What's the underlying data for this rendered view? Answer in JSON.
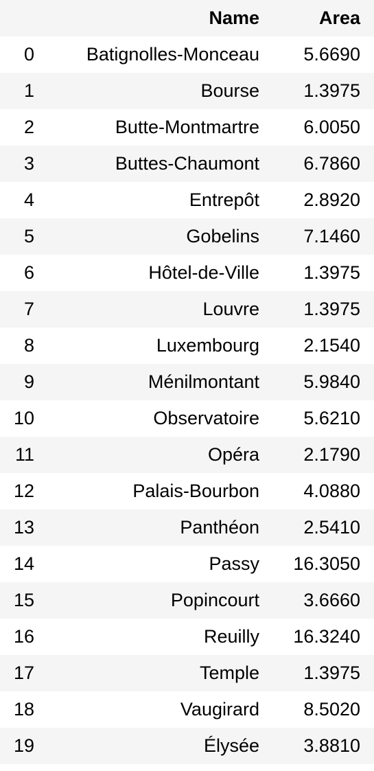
{
  "table": {
    "columns": {
      "index": "",
      "name": "Name",
      "area": "Area"
    },
    "rows": [
      {
        "index": "0",
        "name": "Batignolles-Monceau",
        "area": "5.6690"
      },
      {
        "index": "1",
        "name": "Bourse",
        "area": "1.3975"
      },
      {
        "index": "2",
        "name": "Butte-Montmartre",
        "area": "6.0050"
      },
      {
        "index": "3",
        "name": "Buttes-Chaumont",
        "area": "6.7860"
      },
      {
        "index": "4",
        "name": "Entrepôt",
        "area": "2.8920"
      },
      {
        "index": "5",
        "name": "Gobelins",
        "area": "7.1460"
      },
      {
        "index": "6",
        "name": "Hôtel-de-Ville",
        "area": "1.3975"
      },
      {
        "index": "7",
        "name": "Louvre",
        "area": "1.3975"
      },
      {
        "index": "8",
        "name": "Luxembourg",
        "area": "2.1540"
      },
      {
        "index": "9",
        "name": "Ménilmontant",
        "area": "5.9840"
      },
      {
        "index": "10",
        "name": "Observatoire",
        "area": "5.6210"
      },
      {
        "index": "11",
        "name": "Opéra",
        "area": "2.1790"
      },
      {
        "index": "12",
        "name": "Palais-Bourbon",
        "area": "4.0880"
      },
      {
        "index": "13",
        "name": "Panthéon",
        "area": "2.5410"
      },
      {
        "index": "14",
        "name": "Passy",
        "area": "16.3050"
      },
      {
        "index": "15",
        "name": "Popincourt",
        "area": "3.6660"
      },
      {
        "index": "16",
        "name": "Reuilly",
        "area": "16.3240"
      },
      {
        "index": "17",
        "name": "Temple",
        "area": "1.3975"
      },
      {
        "index": "18",
        "name": "Vaugirard",
        "area": "8.5020"
      },
      {
        "index": "19",
        "name": "Élysée",
        "area": "3.8810"
      }
    ]
  }
}
